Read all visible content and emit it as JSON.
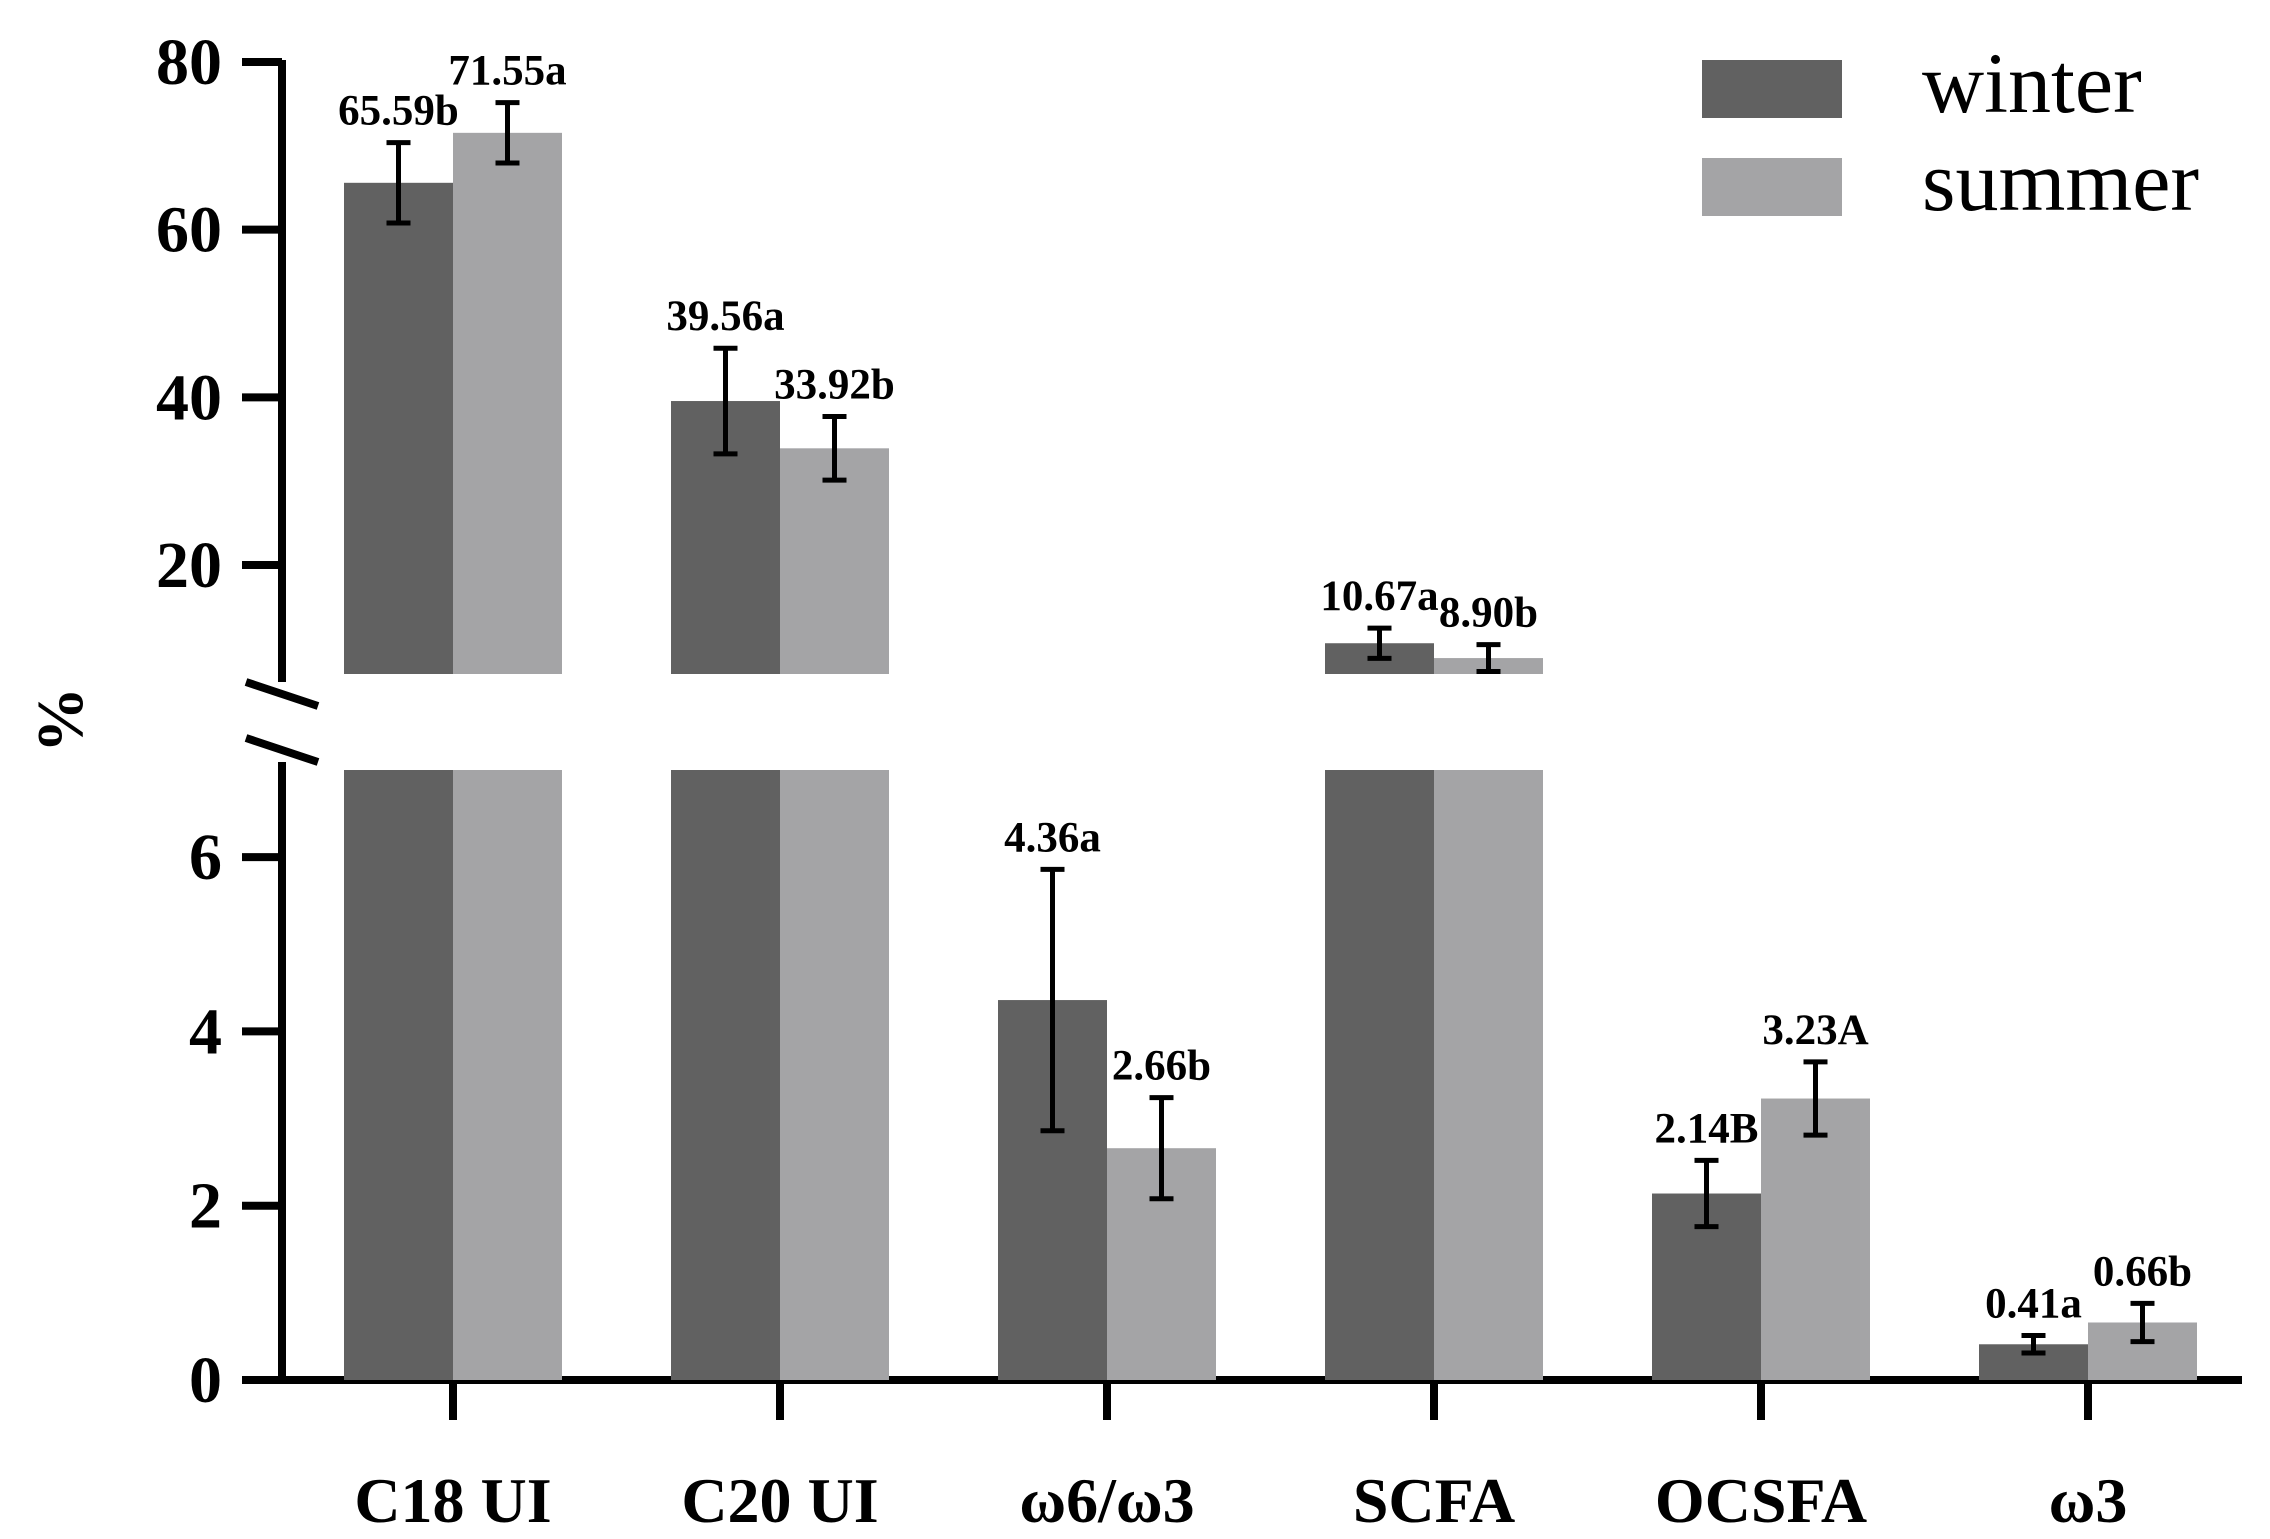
{
  "chart_data": {
    "type": "bar",
    "title": "",
    "xlabel": "",
    "ylabel": "%",
    "axis_break": {
      "lower_range": [
        0,
        7
      ],
      "upper_range": [
        7,
        80
      ]
    },
    "ylim": [
      0,
      80
    ],
    "yticks_lower": [
      "0",
      "2",
      "4",
      "6"
    ],
    "yticks_upper": [
      "20",
      "40",
      "60",
      "80"
    ],
    "categories": [
      "C18 UI",
      "C20 UI",
      "ω6/ω3",
      "SCFA",
      "OCSFA",
      "ω3"
    ],
    "series": [
      {
        "name": "winter",
        "color": "#616161",
        "values": [
          65.59,
          39.56,
          4.36,
          10.67,
          2.14,
          0.41
        ],
        "errors": [
          4.8,
          6.3,
          1.5,
          1.8,
          0.38,
          0.1
        ],
        "labels": [
          "65.59b",
          "39.56a",
          "4.36a",
          "10.67a",
          "2.14B",
          "0.41a"
        ]
      },
      {
        "name": "summer",
        "color": "#a4a4a6",
        "values": [
          71.55,
          33.92,
          2.66,
          8.9,
          3.23,
          0.66
        ],
        "errors": [
          3.6,
          3.8,
          0.58,
          1.6,
          0.42,
          0.22
        ],
        "labels": [
          "71.55a",
          "33.92b",
          "2.66b",
          "8.90b",
          "3.23A",
          "0.66b"
        ]
      }
    ],
    "legend": {
      "position": "top-right",
      "entries": [
        "winter",
        "summer"
      ]
    },
    "grid": false
  }
}
